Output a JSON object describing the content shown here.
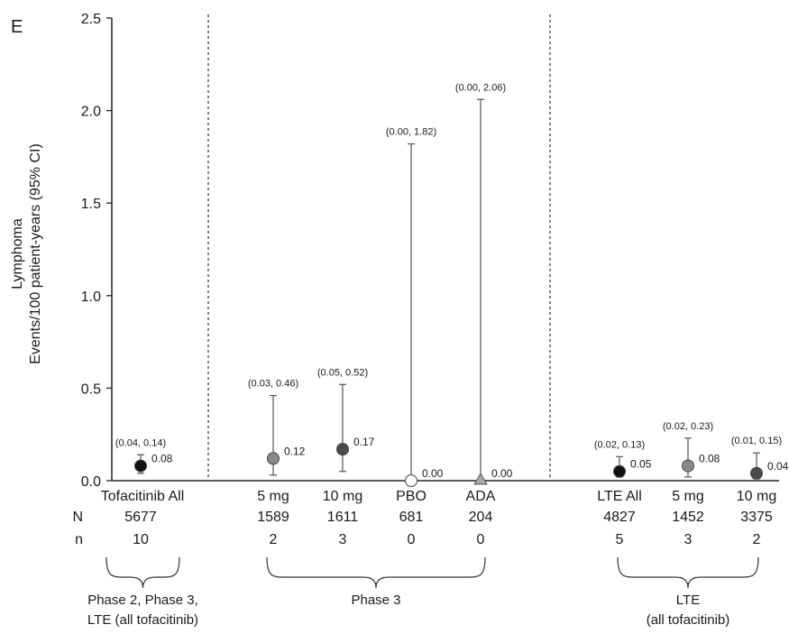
{
  "panel_letter": "E",
  "chart_data": {
    "type": "scatter",
    "ylabel_lines": [
      "Lymphoma",
      "Events/100 patient-years (95% CI)"
    ],
    "ylim": [
      0,
      2.5
    ],
    "yticks": [
      "0.0",
      "0.5",
      "1.0",
      "1.5",
      "2.0",
      "2.5"
    ],
    "yvalues": [
      0,
      0.5,
      1.0,
      1.5,
      2.0,
      2.5
    ],
    "row_labels": {
      "N": "N",
      "n": "n"
    },
    "points": [
      {
        "category": "Tofacitinib All",
        "N": "5677",
        "n": "10",
        "value": 0.08,
        "value_label": "0.08",
        "ci_low": 0.04,
        "ci_high": 0.14,
        "ci_label": "(0.04, 0.14)",
        "marker": "circle",
        "color": "#111111"
      },
      {
        "category": "5 mg",
        "N": "1589",
        "n": "2",
        "value": 0.12,
        "value_label": "0.12",
        "ci_low": 0.03,
        "ci_high": 0.46,
        "ci_label": "(0.03, 0.46)",
        "marker": "circle",
        "color": "#8a8a8a"
      },
      {
        "category": "10 mg",
        "N": "1611",
        "n": "3",
        "value": 0.17,
        "value_label": "0.17",
        "ci_low": 0.05,
        "ci_high": 0.52,
        "ci_label": "(0.05, 0.52)",
        "marker": "circle",
        "color": "#4a4a4a"
      },
      {
        "category": "PBO",
        "N": "681",
        "n": "0",
        "value": 0.0,
        "value_label": "0.00",
        "ci_low": 0.0,
        "ci_high": 1.82,
        "ci_label": "(0.00, 1.82)",
        "marker": "circle-open",
        "color": "#ffffff"
      },
      {
        "category": "ADA",
        "N": "204",
        "n": "0",
        "value": 0.0,
        "value_label": "0.00",
        "ci_low": 0.0,
        "ci_high": 2.06,
        "ci_label": "(0.00, 2.06)",
        "marker": "triangle",
        "color": "#a8a8a8"
      },
      {
        "category": "LTE All",
        "N": "4827",
        "n": "5",
        "value": 0.05,
        "value_label": "0.05",
        "ci_low": 0.02,
        "ci_high": 0.13,
        "ci_label": "(0.02, 0.13)",
        "marker": "circle",
        "color": "#111111"
      },
      {
        "category": "5 mg",
        "N": "1452",
        "n": "3",
        "value": 0.08,
        "value_label": "0.08",
        "ci_low": 0.02,
        "ci_high": 0.23,
        "ci_label": "(0.02, 0.23)",
        "marker": "circle",
        "color": "#8a8a8a"
      },
      {
        "category": "10 mg",
        "N": "3375",
        "n": "2",
        "value": 0.04,
        "value_label": "0.04",
        "ci_low": 0.01,
        "ci_high": 0.15,
        "ci_label": "(0.01, 0.15)",
        "marker": "circle",
        "color": "#4a4a4a"
      }
    ],
    "groups": [
      {
        "label_lines": [
          "Phase 2, Phase 3,",
          "LTE (all tofacitinib)"
        ],
        "from": 0,
        "to": 0
      },
      {
        "label_lines": [
          "Phase 3"
        ],
        "from": 1,
        "to": 4
      },
      {
        "label_lines": [
          "LTE",
          "(all tofacitinib)"
        ],
        "from": 5,
        "to": 7
      }
    ],
    "separators_after": [
      0,
      4
    ]
  }
}
